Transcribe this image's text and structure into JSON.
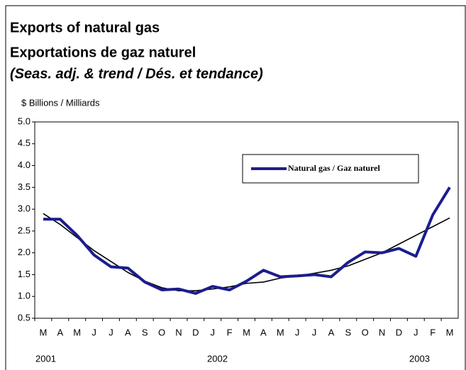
{
  "chart_data": {
    "type": "line",
    "title": "Exports of natural gas",
    "subtitle": "Exportations de gaz naturel",
    "note": "(Seas. adj. & trend / Dés. et tendance)",
    "y_label": "$ Billions / Milliards",
    "categories": [
      "M",
      "A",
      "M",
      "J",
      "J",
      "A",
      "S",
      "O",
      "N",
      "D",
      "J",
      "F",
      "M",
      "A",
      "M",
      "J",
      "J",
      "A",
      "S",
      "O",
      "N",
      "D",
      "J",
      "F",
      "M"
    ],
    "years": [
      "2001",
      "2002",
      "2003"
    ],
    "series": [
      {
        "name": "Natural gas / Gaz naturel",
        "color": "#1c1c8f",
        "values": [
          2.77,
          2.77,
          2.4,
          1.95,
          1.68,
          1.65,
          1.33,
          1.15,
          1.17,
          1.07,
          1.23,
          1.15,
          1.35,
          1.6,
          1.45,
          1.47,
          1.5,
          1.45,
          1.78,
          2.02,
          2.0,
          2.1,
          1.92,
          2.87,
          3.5
        ]
      },
      {
        "color": "#000000",
        "values": [
          2.9,
          2.65,
          2.35,
          2.05,
          1.8,
          1.55,
          1.35,
          1.2,
          1.13,
          1.13,
          1.17,
          1.22,
          1.3,
          1.33,
          1.42,
          1.47,
          1.53,
          1.6,
          1.7,
          1.85,
          2.0,
          2.2,
          2.4,
          2.6,
          2.8
        ]
      }
    ],
    "ylim": [
      0.5,
      5.0
    ],
    "yticks": [
      {
        "value": 0.5,
        "label": "0.5"
      },
      {
        "value": 1.0,
        "label": "1.0"
      },
      {
        "value": 1.5,
        "label": "1.5"
      },
      {
        "value": 2.0,
        "label": "2.0"
      },
      {
        "value": 2.5,
        "label": "2.5"
      },
      {
        "value": 3.0,
        "label": "3.0"
      },
      {
        "value": 3.5,
        "label": "3.5"
      },
      {
        "value": 4.0,
        "label": "4.0"
      },
      {
        "value": 4.5,
        "label": "4.5"
      },
      {
        "value": 5.0,
        "label": "5.0"
      }
    ],
    "legend": "upper right",
    "grid": false
  }
}
